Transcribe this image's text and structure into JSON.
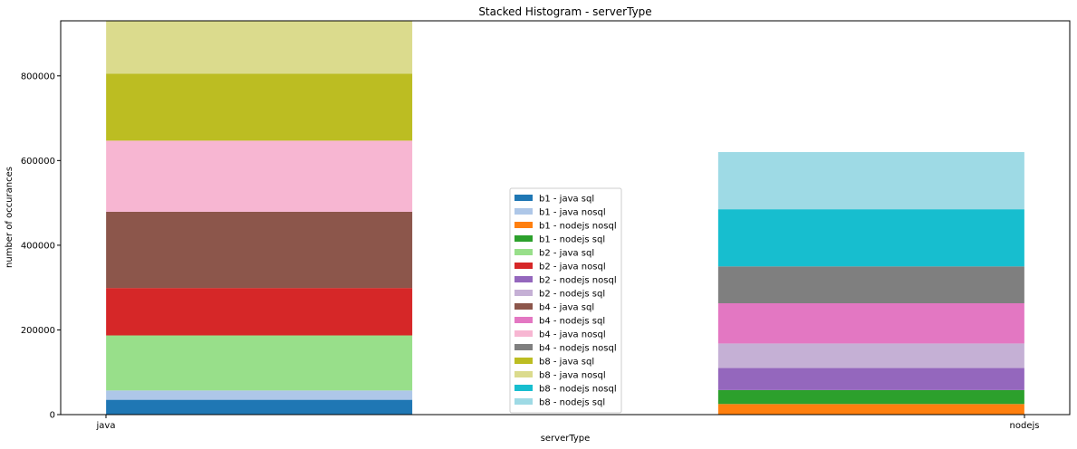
{
  "chart_data": {
    "type": "bar",
    "stacked": true,
    "title": "Stacked Histogram - serverType",
    "xlabel": "serverType",
    "ylabel": "number of occurances",
    "categories": [
      "java",
      "nodejs"
    ],
    "ylim": [
      0,
      930000
    ],
    "yticks": [
      0,
      200000,
      400000,
      600000,
      800000
    ],
    "ytick_labels": [
      "0",
      "200000",
      "400000",
      "600000",
      "800000"
    ],
    "legend_position": "center",
    "series": [
      {
        "name": "b1 - java sql",
        "color": "#1f77b4",
        "values": [
          35000,
          0
        ]
      },
      {
        "name": "b1 - java nosql",
        "color": "#aec7e8",
        "values": [
          22000,
          0
        ]
      },
      {
        "name": "b1 - nodejs nosql",
        "color": "#ff7f0e",
        "values": [
          0,
          25000
        ]
      },
      {
        "name": "b1 - nodejs sql",
        "color": "#2ca02c",
        "values": [
          0,
          33000
        ]
      },
      {
        "name": "b2 - java sql",
        "color": "#98df8a",
        "values": [
          130000,
          0
        ]
      },
      {
        "name": "b2 - java nosql",
        "color": "#d62728",
        "values": [
          112000,
          0
        ]
      },
      {
        "name": "b2 - nodejs nosql",
        "color": "#9467bd",
        "values": [
          0,
          52000
        ]
      },
      {
        "name": "b2 - nodejs sql",
        "color": "#c5b0d5",
        "values": [
          0,
          58000
        ]
      },
      {
        "name": "b4 - java sql",
        "color": "#8c564b",
        "values": [
          180000,
          0
        ]
      },
      {
        "name": "b4 - nodejs sql",
        "color": "#e377c2",
        "values": [
          0,
          95000
        ]
      },
      {
        "name": "b4 - java nosql",
        "color": "#f7b6d2",
        "values": [
          168000,
          0
        ]
      },
      {
        "name": "b4 - nodejs nosql",
        "color": "#7f7f7f",
        "values": [
          0,
          87000
        ]
      },
      {
        "name": "b8 - java sql",
        "color": "#bcbd22",
        "values": [
          158000,
          0
        ]
      },
      {
        "name": "b8 - java nosql",
        "color": "#dbdb8d",
        "values": [
          125000,
          0
        ]
      },
      {
        "name": "b8 - nodejs nosql",
        "color": "#17becf",
        "values": [
          0,
          135000
        ]
      },
      {
        "name": "b8 - nodejs sql",
        "color": "#9edae5",
        "values": [
          0,
          135000
        ]
      }
    ]
  }
}
